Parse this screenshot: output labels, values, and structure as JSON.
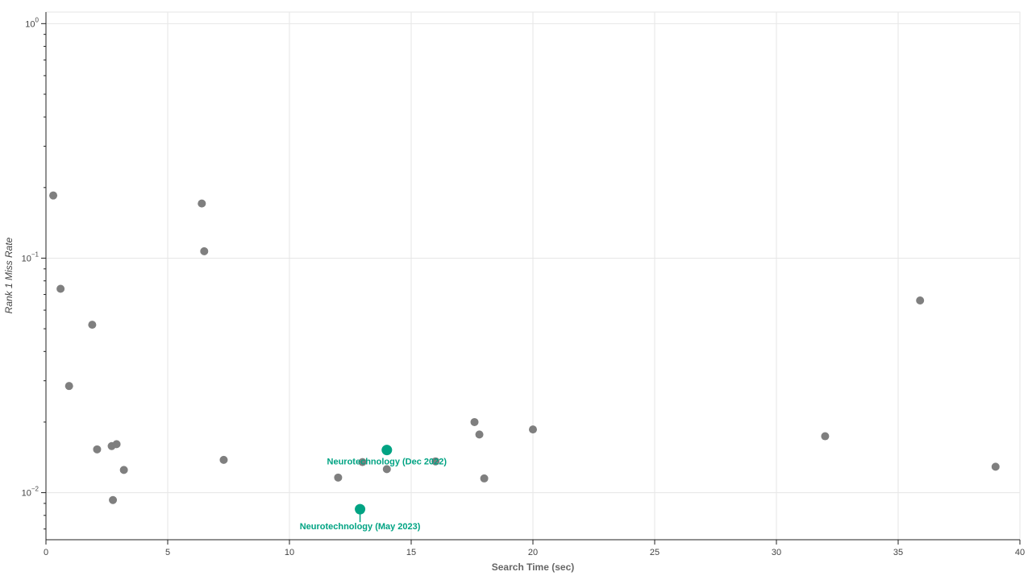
{
  "chart_data": {
    "type": "scatter",
    "title": "",
    "xlabel": "Search Time (sec)",
    "ylabel": "Rank 1 Miss Rate",
    "xlim": [
      0,
      40
    ],
    "ylim": [
      0.0063,
      1.12
    ],
    "y_scale": "log",
    "grid": true,
    "x_ticks": [
      0,
      5,
      10,
      15,
      20,
      25,
      30,
      35,
      40
    ],
    "x_tick_labels": [
      "0",
      "5",
      "10",
      "15",
      "20",
      "25",
      "30",
      "35",
      "40"
    ],
    "y_ticks": [
      {
        "value": 1,
        "base": "10",
        "exp": "0"
      },
      {
        "value": 0.1,
        "base": "10",
        "exp": "−1"
      },
      {
        "value": 0.01,
        "base": "10",
        "exp": "−2"
      }
    ],
    "colors": {
      "other": "#7f7f7f",
      "highlight": "#00a383",
      "grid": "#e6e6e6",
      "axis": "#222222",
      "xlabel": "#666666"
    },
    "points": [
      {
        "x": 0.3,
        "y": 0.185
      },
      {
        "x": 0.6,
        "y": 0.074
      },
      {
        "x": 0.95,
        "y": 0.0285
      },
      {
        "x": 1.9,
        "y": 0.052
      },
      {
        "x": 2.1,
        "y": 0.0153
      },
      {
        "x": 2.7,
        "y": 0.0158
      },
      {
        "x": 2.9,
        "y": 0.0161
      },
      {
        "x": 2.75,
        "y": 0.0093
      },
      {
        "x": 3.2,
        "y": 0.0125
      },
      {
        "x": 6.4,
        "y": 0.171
      },
      {
        "x": 6.5,
        "y": 0.107
      },
      {
        "x": 7.3,
        "y": 0.0138
      },
      {
        "x": 12.0,
        "y": 0.0116
      },
      {
        "x": 13.0,
        "y": 0.0135
      },
      {
        "x": 14.0,
        "y": 0.0126
      },
      {
        "x": 16.0,
        "y": 0.0136
      },
      {
        "x": 17.6,
        "y": 0.02
      },
      {
        "x": 17.8,
        "y": 0.0177
      },
      {
        "x": 18.0,
        "y": 0.0115
      },
      {
        "x": 20.0,
        "y": 0.0186
      },
      {
        "x": 32.0,
        "y": 0.0174
      },
      {
        "x": 35.9,
        "y": 0.066
      },
      {
        "x": 39.0,
        "y": 0.0129
      }
    ],
    "highlights": [
      {
        "x": 14.0,
        "y": 0.0152,
        "label": "Neurotechnology (Dec 2022)"
      },
      {
        "x": 12.9,
        "y": 0.0085,
        "label": "Neurotechnology (May 2023)"
      }
    ]
  }
}
